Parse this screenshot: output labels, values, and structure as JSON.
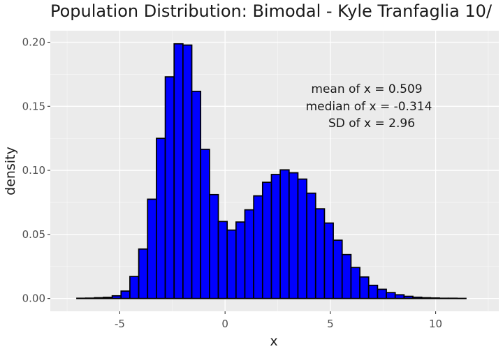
{
  "chart_data": {
    "type": "bar",
    "title": "Population Distribution: Bimodal -  Kyle Tranfaglia 10/",
    "xlabel": "x",
    "ylabel": "density",
    "xlim": [
      -8.3,
      13.0
    ],
    "ylim": [
      -0.01,
      0.209
    ],
    "x_ticks": [
      -5,
      0,
      5,
      10
    ],
    "y_ticks": [
      0.0,
      0.05,
      0.1,
      0.15,
      0.2
    ],
    "x_tick_labels": [
      "-5",
      "0",
      "5",
      "10"
    ],
    "y_tick_labels": [
      "0.00",
      "0.05",
      "0.10",
      "0.15",
      "0.20"
    ],
    "grid": true,
    "background": "#ebebeb",
    "bar_fill": "#0000ff",
    "bar_outline": "#000000",
    "bin_width": 0.42,
    "bin_start": -7.04,
    "values": [
      0.0002,
      0.0003,
      0.0006,
      0.0009,
      0.0021,
      0.0058,
      0.0172,
      0.0386,
      0.0775,
      0.125,
      0.173,
      0.1988,
      0.1978,
      0.1617,
      0.1164,
      0.0811,
      0.0601,
      0.0534,
      0.0597,
      0.0692,
      0.0801,
      0.0907,
      0.0968,
      0.1004,
      0.0981,
      0.0932,
      0.0822,
      0.07,
      0.0589,
      0.0455,
      0.0343,
      0.0242,
      0.0168,
      0.0103,
      0.0072,
      0.0046,
      0.0029,
      0.0017,
      0.001,
      0.0006,
      0.0004,
      0.0002,
      0.0002,
      0.0001
    ],
    "annotations": [
      "mean of x = 0.509",
      "median of x = -0.314",
      "SD of x = 2.96"
    ]
  }
}
